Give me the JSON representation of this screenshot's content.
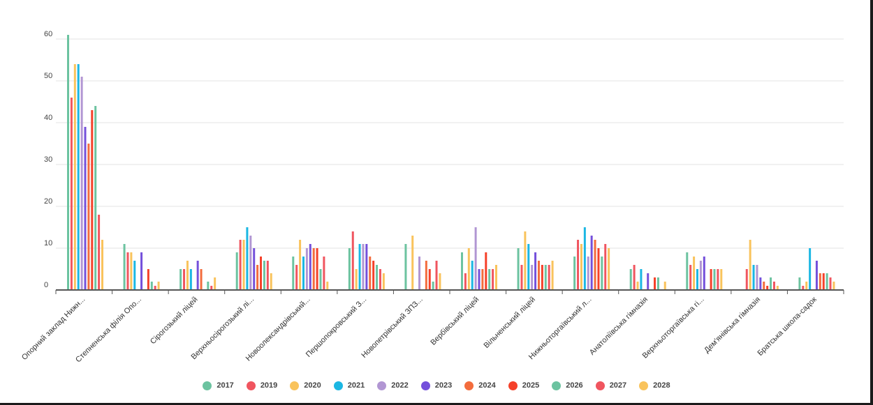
{
  "chart_data": {
    "type": "bar",
    "title": "",
    "xlabel": "",
    "ylabel": "",
    "ylim": [
      0,
      60
    ],
    "yticks": [
      0,
      10,
      20,
      30,
      40,
      50,
      60
    ],
    "grid": true,
    "legend_position": "bottom",
    "categories": [
      "Опорний заклад Нижн...",
      "Степненська філія Опо...",
      "Сірогозький ліцей",
      "Верхньосірогозький лі...",
      "Новоолександрівський...",
      "Першопокровський З...",
      "Новопетрівський ЗПЗ...",
      "Вербівський ліцей",
      "Вільненський ліцей",
      "Нижньоторгаївський л...",
      "Анатоліївська гімназія",
      "Верхньоторгаївська гі...",
      "Дем'янівська гімназія",
      "Братська школа-садок"
    ],
    "series": [
      {
        "name": "2017",
        "color": "#6cc3a0",
        "values": [
          61,
          11,
          5,
          9,
          8,
          10,
          11,
          9,
          10,
          8,
          5,
          9,
          0,
          3
        ]
      },
      {
        "name": "2019",
        "color": "#f0555f",
        "values": [
          46,
          9,
          5,
          12,
          6,
          14,
          0,
          4,
          6,
          12,
          6,
          6,
          5,
          1
        ]
      },
      {
        "name": "2020",
        "color": "#f9c35c",
        "values": [
          54,
          9,
          7,
          12,
          12,
          5,
          13,
          10,
          14,
          11,
          2,
          8,
          12,
          2
        ]
      },
      {
        "name": "2021",
        "color": "#1bb7e3",
        "values": [
          54,
          7,
          5,
          15,
          8,
          11,
          0,
          7,
          11,
          15,
          5,
          5,
          6,
          10
        ]
      },
      {
        "name": "2022",
        "color": "#b196d3",
        "values": [
          51,
          0,
          0,
          13,
          10,
          11,
          8,
          15,
          6,
          8,
          0,
          7,
          6,
          0
        ]
      },
      {
        "name": "2023",
        "color": "#7450db",
        "values": [
          39,
          9,
          7,
          10,
          11,
          11,
          0,
          5,
          9,
          13,
          4,
          8,
          3,
          7
        ]
      },
      {
        "name": "2024",
        "color": "#f36c3d",
        "values": [
          35,
          0,
          5,
          6,
          10,
          8,
          7,
          5,
          7,
          12,
          0,
          0,
          2,
          4
        ]
      },
      {
        "name": "2025",
        "color": "#f5412a",
        "values": [
          43,
          5,
          0,
          8,
          10,
          7,
          5,
          9,
          6,
          10,
          3,
          5,
          1,
          4
        ]
      },
      {
        "name": "2026",
        "color": "#6cc3a0",
        "values": [
          44,
          2,
          2,
          7,
          5,
          6,
          2,
          5,
          6,
          8,
          3,
          5,
          3,
          4
        ]
      },
      {
        "name": "2027",
        "color": "#f0555f",
        "values": [
          18,
          1,
          1,
          7,
          8,
          5,
          7,
          5,
          6,
          11,
          0,
          5,
          2,
          3
        ]
      },
      {
        "name": "2028",
        "color": "#f9c35c",
        "values": [
          12,
          2,
          3,
          4,
          2,
          4,
          4,
          6,
          7,
          10,
          2,
          5,
          1,
          2
        ]
      }
    ]
  }
}
